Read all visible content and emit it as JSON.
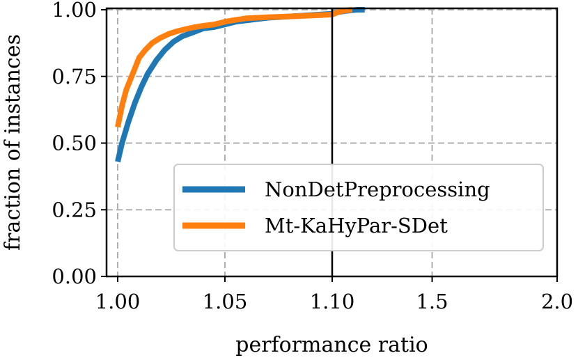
{
  "chart_data": {
    "type": "line",
    "title": "",
    "xlabel": "performance ratio",
    "ylabel": "fraction of instances",
    "ylim": [
      0,
      1
    ],
    "x_ticks": [
      "1.00",
      "1.05",
      "1.10",
      "1.5",
      "2.0"
    ],
    "y_ticks": [
      "0.00",
      "0.25",
      "0.50",
      "0.75",
      "1.00"
    ],
    "x_scale_note": "piecewise: linear 1.00-1.10 on left segment, then 1.10-2.0 on right segment",
    "grid": true,
    "legend_position": "lower-right",
    "series": [
      {
        "name": "NonDetPreprocessing",
        "color": "#1f77b4",
        "x": [
          1.0,
          1.002,
          1.005,
          1.008,
          1.011,
          1.014,
          1.018,
          1.022,
          1.026,
          1.03,
          1.035,
          1.04,
          1.045,
          1.05,
          1.055,
          1.06,
          1.07,
          1.08,
          1.09,
          1.1,
          1.12,
          1.15,
          1.2,
          1.23
        ],
        "y": [
          0.43,
          0.5,
          0.58,
          0.65,
          0.71,
          0.76,
          0.81,
          0.85,
          0.88,
          0.9,
          0.915,
          0.93,
          0.935,
          0.945,
          0.955,
          0.96,
          0.97,
          0.975,
          0.98,
          0.985,
          0.99,
          0.995,
          1.0,
          1.0
        ]
      },
      {
        "name": "Mt-KaHyPar-SDet",
        "color": "#ff7f0e",
        "x": [
          1.0,
          1.002,
          1.004,
          1.007,
          1.01,
          1.013,
          1.016,
          1.02,
          1.024,
          1.028,
          1.032,
          1.036,
          1.04,
          1.045,
          1.05,
          1.055,
          1.06,
          1.07,
          1.08,
          1.09,
          1.1,
          1.12,
          1.15,
          1.18
        ],
        "y": [
          0.56,
          0.64,
          0.7,
          0.76,
          0.82,
          0.85,
          0.875,
          0.895,
          0.91,
          0.92,
          0.928,
          0.935,
          0.94,
          0.945,
          0.955,
          0.962,
          0.968,
          0.972,
          0.975,
          0.978,
          0.982,
          0.99,
          0.997,
          1.0
        ]
      }
    ]
  }
}
